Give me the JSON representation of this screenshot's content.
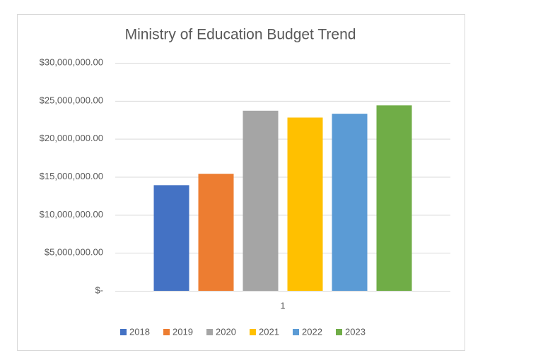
{
  "chart_data": {
    "type": "bar",
    "title": "Ministry of Education Budget Trend",
    "categories": [
      "1"
    ],
    "series": [
      {
        "name": "2018",
        "color": "#4472c4",
        "values": [
          13900000
        ]
      },
      {
        "name": "2019",
        "color": "#ed7d31",
        "values": [
          15400000
        ]
      },
      {
        "name": "2020",
        "color": "#a5a5a5",
        "values": [
          23700000
        ]
      },
      {
        "name": "2021",
        "color": "#ffc000",
        "values": [
          22800000
        ]
      },
      {
        "name": "2022",
        "color": "#5b9bd5",
        "values": [
          23300000
        ]
      },
      {
        "name": "2023",
        "color": "#70ad47",
        "values": [
          24400000
        ]
      }
    ],
    "ylim": [
      0,
      30000000
    ],
    "yticks": [
      {
        "value": 0,
        "label": "$-"
      },
      {
        "value": 5000000,
        "label": "$5,000,000.00"
      },
      {
        "value": 10000000,
        "label": "$10,000,000.00"
      },
      {
        "value": 15000000,
        "label": "$15,000,000.00"
      },
      {
        "value": 20000000,
        "label": "$20,000,000.00"
      },
      {
        "value": 25000000,
        "label": "$25,000,000.00"
      },
      {
        "value": 30000000,
        "label": "$30,000,000.00"
      }
    ],
    "grid": true,
    "legend": "bottom"
  }
}
